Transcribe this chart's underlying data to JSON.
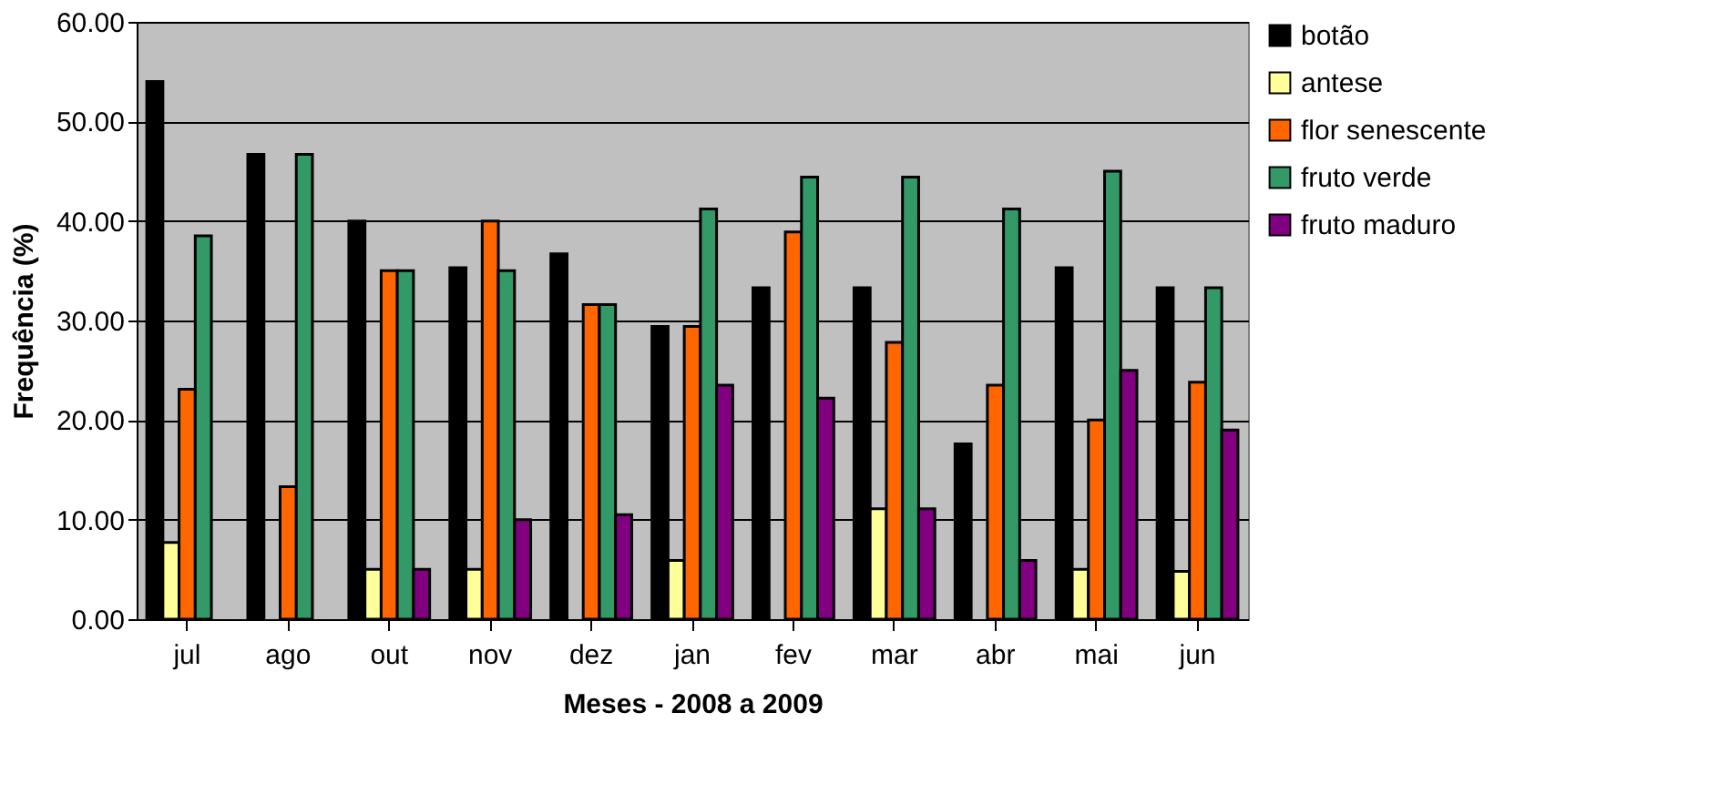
{
  "chart_data": {
    "type": "bar",
    "xlabel": "Meses - 2008 a 2009",
    "ylabel": "Frequência (%)",
    "categories": [
      "jul",
      "ago",
      "out",
      "nov",
      "dez",
      "jan",
      "fev",
      "mar",
      "abr",
      "mai",
      "jun"
    ],
    "series": [
      {
        "name": "botão",
        "color": "#000000",
        "values": [
          54.0,
          46.7,
          40.0,
          35.3,
          36.7,
          29.4,
          33.3,
          33.3,
          17.6,
          35.3,
          33.3
        ]
      },
      {
        "name": "antese",
        "color": "#ffff99",
        "values": [
          7.7,
          null,
          5.0,
          5.0,
          null,
          5.9,
          null,
          11.1,
          null,
          5.0,
          4.8
        ]
      },
      {
        "name": "flor senescente",
        "color": "#ff6600",
        "values": [
          23.1,
          13.3,
          35.0,
          40.0,
          31.6,
          29.4,
          38.9,
          27.8,
          23.5,
          20.0,
          23.8
        ]
      },
      {
        "name": "fruto verde",
        "color": "#339966",
        "values": [
          38.5,
          46.7,
          35.0,
          35.0,
          31.6,
          41.2,
          44.4,
          44.4,
          41.2,
          45.0,
          33.3
        ]
      },
      {
        "name": "fruto maduro",
        "color": "#800080",
        "values": [
          null,
          null,
          5.0,
          10.0,
          10.5,
          23.5,
          22.2,
          11.1,
          5.9,
          25.0,
          19.0
        ]
      }
    ],
    "ylim": [
      0,
      60
    ],
    "yticks": [
      {
        "value": 0,
        "label": "0.00"
      },
      {
        "value": 10,
        "label": "10.00"
      },
      {
        "value": 20,
        "label": "20.00"
      },
      {
        "value": 30,
        "label": "30.00"
      },
      {
        "value": 40,
        "label": "40.00"
      },
      {
        "value": 50,
        "label": "50.00"
      },
      {
        "value": 60,
        "label": "60.00"
      }
    ],
    "grid": "y",
    "legend": "right"
  }
}
